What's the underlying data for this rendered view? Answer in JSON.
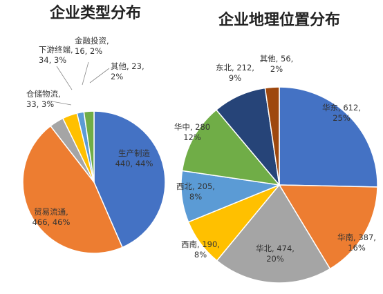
{
  "chart_data": [
    {
      "type": "pie",
      "title": "企业类型分布",
      "slices": [
        {
          "name": "生产制造",
          "value": 440,
          "percent": "44%",
          "color": "#4472C4"
        },
        {
          "name": "贸易流通",
          "value": 466,
          "percent": "46%",
          "color": "#ED7D31"
        },
        {
          "name": "仓储物流",
          "value": 33,
          "percent": "3%",
          "color": "#A5A5A5"
        },
        {
          "name": "下游终端",
          "value": 34,
          "percent": "3%",
          "color": "#FFC000"
        },
        {
          "name": "金融投资",
          "value": 16,
          "percent": "2%",
          "color": "#5B9BD5"
        },
        {
          "name": "其他",
          "value": 23,
          "percent": "2%",
          "color": "#70AD47"
        }
      ],
      "labels": [
        {
          "line1": "生产制造",
          "line2": "440, 44%"
        },
        {
          "line1": "贸易流通,",
          "line2": "466, 46%"
        },
        {
          "line1": "仓储物流,",
          "line2": "33, 3%"
        },
        {
          "line1": "下游终端,",
          "line2": "34, 3%"
        },
        {
          "line1": "金融投资,",
          "line2": "16, 2%"
        },
        {
          "line1": "其他, 23,",
          "line2": "2%"
        }
      ]
    },
    {
      "type": "pie",
      "title": "企业地理位置分布",
      "slices": [
        {
          "name": "华东",
          "value": 612,
          "percent": "25%",
          "color": "#4472C4"
        },
        {
          "name": "华南",
          "value": 387,
          "percent": "16%",
          "color": "#ED7D31"
        },
        {
          "name": "华北",
          "value": 474,
          "percent": "20%",
          "color": "#A5A5A5"
        },
        {
          "name": "西南",
          "value": 190,
          "percent": "8%",
          "color": "#FFC000"
        },
        {
          "name": "西北",
          "value": 205,
          "percent": "8%",
          "color": "#5B9BD5"
        },
        {
          "name": "华中",
          "value": 280,
          "percent": "12%",
          "color": "#70AD47"
        },
        {
          "name": "东北",
          "value": 212,
          "percent": "9%",
          "color": "#264478"
        },
        {
          "name": "其他",
          "value": 56,
          "percent": "2%",
          "color": "#9E480E"
        }
      ],
      "labels": [
        {
          "line1": "华东, 612,",
          "line2": "25%"
        },
        {
          "line1": "华南, 387,",
          "line2": "16%"
        },
        {
          "line1": "华北, 474,",
          "line2": "20%"
        },
        {
          "line1": "西南, 190,",
          "line2": "8%"
        },
        {
          "line1": "西北, 205,",
          "line2": "8%"
        },
        {
          "line1": "华中, 280",
          "line2": "12%"
        },
        {
          "line1": "东北, 212,",
          "line2": "9%"
        },
        {
          "line1": "其他, 56,",
          "line2": "2%"
        }
      ]
    }
  ]
}
